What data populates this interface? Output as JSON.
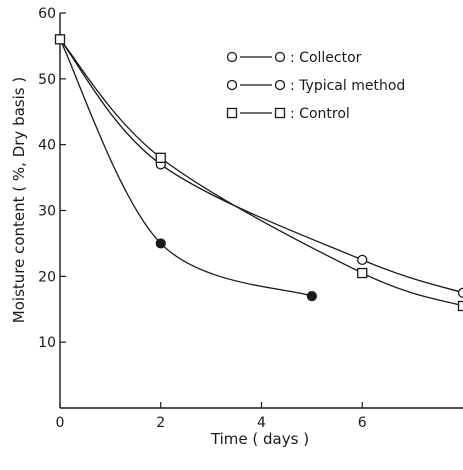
{
  "chart_data": {
    "type": "line",
    "title": "",
    "xlabel": "Time ( days )",
    "ylabel": "Moisture content ( %, Dry basis )",
    "xlim": [
      0,
      8
    ],
    "ylim": [
      0,
      60
    ],
    "xticks": [
      0,
      2,
      4,
      6
    ],
    "xtick_labels": [
      "0",
      "2",
      "4",
      "6"
    ],
    "yticks": [
      10,
      20,
      30,
      40,
      50,
      60
    ],
    "ytick_labels": [
      "10",
      "20",
      "30",
      "40",
      "50",
      "60"
    ],
    "grid": false,
    "legend_position": "top-right",
    "series": [
      {
        "name": ": Collector",
        "marker": "circle-open",
        "x": [
          0,
          2,
          6,
          8
        ],
        "y": [
          56,
          37,
          22.5,
          17.5
        ]
      },
      {
        "name": ": Typical method",
        "marker": "circle-filled",
        "x": [
          0,
          2,
          5
        ],
        "y": [
          56,
          25,
          17
        ]
      },
      {
        "name": ": Control",
        "marker": "square-open",
        "x": [
          0,
          2,
          6,
          8
        ],
        "y": [
          56,
          38,
          20.5,
          15.5
        ]
      }
    ]
  },
  "colors": {
    "ink": "#1a1a1a",
    "background": "#ffffff"
  }
}
